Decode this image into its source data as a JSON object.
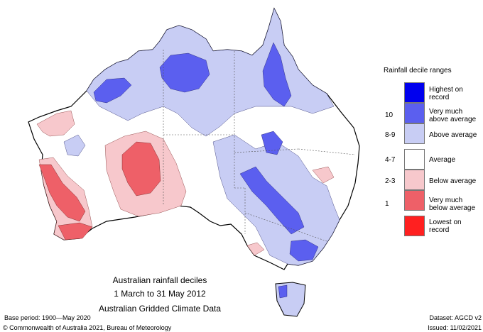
{
  "map": {
    "title": "Australian rainfall deciles",
    "period": "1 March to 31 May 2012",
    "dataset_name": "Australian Gridded Climate Data"
  },
  "legend": {
    "title": "Rainfall decile ranges",
    "items": [
      {
        "label": "Highest on record",
        "range": "",
        "color": "#0000ee"
      },
      {
        "label": "Very much above average",
        "range": "10",
        "color": "#5b5fef"
      },
      {
        "label": "Above average",
        "range": "8-9",
        "color": "#c8cdf4"
      },
      {
        "label": "Average",
        "range": "4-7",
        "color": "#ffffff"
      },
      {
        "label": "Below average",
        "range": "2-3",
        "color": "#f7c8cc"
      },
      {
        "label": "Very much below average",
        "range": "1",
        "color": "#ee6068"
      },
      {
        "label": "Lowest on record",
        "range": "",
        "color": "#ff2020"
      }
    ]
  },
  "footer": {
    "base_period": "Base period: 1900—May 2020",
    "dataset": "Dataset: AGCD v2",
    "copyright": "© Commonwealth of Australia 2021, Bureau of Meteorology",
    "issued": "Issued: 11/02/2021"
  }
}
